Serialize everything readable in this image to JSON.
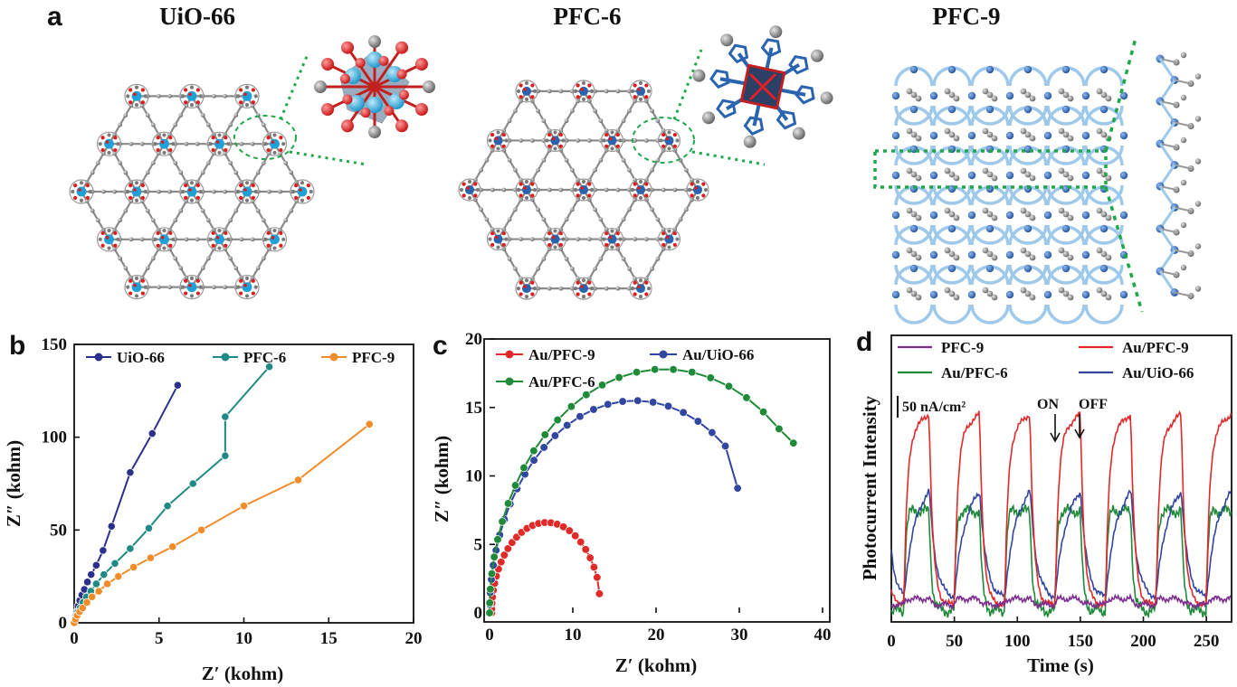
{
  "panel_a": {
    "letter": "a",
    "structures": [
      {
        "name": "UiO-66"
      },
      {
        "name": "PFC-6"
      },
      {
        "name": "PFC-9"
      }
    ],
    "colors": {
      "zr": "#1ea0d8",
      "o": "#e01b1b",
      "c": "#7a7a7a",
      "n": "#2a64b0",
      "n_light": "#9ec9ea",
      "highlight": "#1fa84a"
    }
  },
  "chart_data": [
    {
      "panel": "b",
      "type": "scatter",
      "xlabel": "Z′ (kohm)",
      "ylabel": "Z″ (kohm)",
      "xlim": [
        0,
        20
      ],
      "ylim": [
        0,
        150
      ],
      "xticks": [
        0,
        5,
        10,
        15,
        20
      ],
      "yticks": [
        0,
        50,
        100,
        150
      ],
      "legend_position": "top",
      "series": [
        {
          "name": "UiO-66",
          "color": "#2c2f8c",
          "x": [
            0,
            0.04,
            0.08,
            0.15,
            0.23,
            0.33,
            0.45,
            0.6,
            0.78,
            1.0,
            1.3,
            1.7,
            2.2,
            3.3,
            4.6,
            6.1
          ],
          "y": [
            0,
            2,
            4,
            6,
            9,
            12,
            15,
            18,
            22,
            26,
            31,
            39,
            52,
            81,
            102,
            128
          ]
        },
        {
          "name": "PFC-6",
          "color": "#1f8a85",
          "x": [
            0,
            0.06,
            0.12,
            0.22,
            0.35,
            0.52,
            0.72,
            0.98,
            1.3,
            1.75,
            2.4,
            3.3,
            4.4,
            5.5,
            7.0,
            8.9,
            11.5
          ],
          "y": [
            0,
            2,
            4,
            6,
            8,
            11,
            14,
            17,
            21,
            26,
            32,
            40,
            51,
            63,
            75,
            90,
            111
          ],
          "note_last_point": 138
        },
        {
          "name": "PFC-9",
          "color": "#f08c2a",
          "x": [
            0,
            0.08,
            0.18,
            0.32,
            0.5,
            0.75,
            1.05,
            1.45,
            1.95,
            2.6,
            3.5,
            4.5,
            5.8,
            7.5,
            10.0,
            13.2,
            17.4
          ],
          "y": [
            0,
            2,
            4,
            6,
            8,
            11,
            14,
            17,
            21,
            25,
            30,
            35,
            41,
            50,
            63,
            77,
            107
          ]
        }
      ]
    },
    {
      "panel": "c",
      "type": "scatter",
      "xlabel": "Z′ (kohm)",
      "ylabel": "Z″ (kohm)",
      "xlim": [
        0,
        40
      ],
      "ylim": [
        0,
        20
      ],
      "xticks": [
        0,
        10,
        20,
        30,
        40
      ],
      "yticks": [
        0,
        5,
        10,
        15,
        20
      ],
      "legend_position": "top",
      "series": [
        {
          "name": "Au/PFC-9",
          "color": "#e02a2a",
          "shape": "semicircle",
          "center": 6.85,
          "radius": 6.6,
          "height": 6.6,
          "x_end": 13.2,
          "y_end": 1.4,
          "n": 28
        },
        {
          "name": "Au/UiO-66",
          "color": "#3146a0",
          "shape": "semicircle",
          "center": 17.5,
          "radius": 17.5,
          "height": 15.5,
          "x_end": 29.8,
          "y_end": 9.1,
          "n": 26
        },
        {
          "name": "Au/PFC-6",
          "color": "#1f8a38",
          "shape": "semicircle",
          "center": 21.0,
          "radius": 21.0,
          "height": 17.8,
          "x_end": 36.5,
          "y_end": 12.4,
          "n": 26
        }
      ]
    },
    {
      "panel": "d",
      "type": "line",
      "xlabel": "Time (s)",
      "ylabel": "Photocurrent Intensity",
      "xlim": [
        0,
        270
      ],
      "xticks": [
        0,
        50,
        100,
        150,
        200,
        250
      ],
      "legend_position": "top",
      "scale_bar": "50 nA/cm²",
      "annotations": [
        "ON",
        "OFF"
      ],
      "period_s": 40,
      "on_s": 20,
      "series": [
        {
          "name": "PFC-9",
          "color": "#7c2d8e",
          "base": 5,
          "on_level": 8
        },
        {
          "name": "Au/PFC-9",
          "color": "#e02a2a",
          "base": 5,
          "on_level": 100
        },
        {
          "name": "Au/PFC-6",
          "color": "#1f8a38",
          "base": 2,
          "on_level": 52
        },
        {
          "name": "Au/UiO-66",
          "color": "#3146a0",
          "base": 8,
          "on_level": 70
        }
      ]
    }
  ]
}
